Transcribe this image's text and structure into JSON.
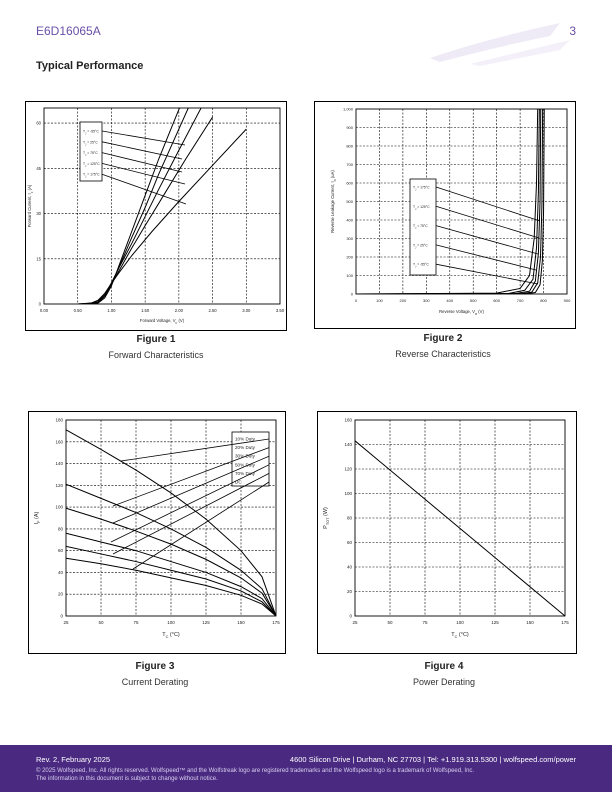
{
  "header": {
    "part_number": "E6D16065A",
    "page_number": "3"
  },
  "section_title": "Typical Performance",
  "figures": [
    {
      "number": "Figure 1",
      "description": "Forward Characteristics"
    },
    {
      "number": "Figure 2",
      "description": "Reverse Characteristics"
    },
    {
      "number": "Figure 3",
      "description": "Current Derating"
    },
    {
      "number": "Figure 4",
      "description": "Power Derating"
    }
  ],
  "footer": {
    "revision": "Rev. 2, February 2025",
    "address": "4600 Silicon Drive | Durham, NC 27703 | Tel: +1.919.313.5300 | wolfspeed.com/power",
    "copyright": "© 2025 Wolfspeed, Inc. All rights reserved. Wolfspeed™ and the Wolfstreak logo are registered trademarks and the Wolfspeed logo is a trademark of Wolfspeed, Inc.",
    "notice": "The information in this document is subject to change without notice."
  },
  "colors": {
    "brand": "#4a2a80",
    "accent": "#6a4fa8"
  },
  "chart_data": [
    {
      "type": "line",
      "xlabel": "Forward Voltage, V_F (V)",
      "ylabel": "Forward Current, I_F (A)",
      "xlim": [
        0,
        3.5
      ],
      "ylim": [
        0,
        65
      ],
      "xticks": [
        "0.00",
        "0.50",
        "1.00",
        "1.50",
        "2.00",
        "2.50",
        "3.00",
        "3.50"
      ],
      "yticks": [
        "0",
        "15",
        "30",
        "45",
        "60"
      ],
      "grid": true,
      "legend_position": "top-left",
      "series": [
        {
          "name": "T_J = -55°C",
          "x": [
            0.6,
            0.8,
            0.9,
            1.0,
            1.1,
            1.3,
            1.5,
            1.7,
            1.9,
            2.1
          ],
          "y": [
            0,
            0.3,
            2,
            6,
            12,
            24,
            36,
            48,
            59,
            70
          ]
        },
        {
          "name": "T_J = 25°C",
          "x": [
            0.6,
            0.8,
            0.9,
            1.0,
            1.1,
            1.3,
            1.5,
            1.7,
            1.9,
            2.2
          ],
          "y": [
            0,
            0.5,
            2.5,
            6.5,
            11.5,
            22,
            32,
            43,
            53,
            68
          ]
        },
        {
          "name": "T_J = 75°C",
          "x": [
            0.6,
            0.8,
            0.9,
            1.0,
            1.1,
            1.3,
            1.5,
            1.7,
            2.0,
            2.4
          ],
          "y": [
            0,
            0.6,
            3,
            7,
            11.5,
            20,
            29,
            38,
            51,
            68
          ]
        },
        {
          "name": "T_J = 125°C",
          "x": [
            0.5,
            0.7,
            0.8,
            0.9,
            1.0,
            1.1,
            1.3,
            1.5,
            1.8,
            2.1,
            2.5
          ],
          "y": [
            0,
            0.3,
            1,
            3,
            6.5,
            10.5,
            18.5,
            26,
            37,
            48,
            62
          ]
        },
        {
          "name": "T_J = 175°C",
          "x": [
            0.5,
            0.7,
            0.8,
            0.9,
            1.0,
            1.1,
            1.3,
            1.6,
            2.0,
            2.5,
            3.0
          ],
          "y": [
            0,
            0.3,
            1.2,
            3.5,
            6.8,
            10,
            16,
            24,
            34,
            46,
            58
          ]
        }
      ]
    },
    {
      "type": "line",
      "xlabel": "Reverse Voltage, V_R (V)",
      "ylabel": "Reverse Leakage Current, I_R (uA)",
      "xlim": [
        0,
        900
      ],
      "ylim": [
        0,
        1000
      ],
      "xticks": [
        "0",
        "100",
        "200",
        "300",
        "400",
        "500",
        "600",
        "700",
        "800",
        "900"
      ],
      "yticks": [
        "0",
        "100",
        "200",
        "300",
        "400",
        "500",
        "600",
        "700",
        "800",
        "900",
        "1,000"
      ],
      "grid": true,
      "legend_position": "left",
      "series": [
        {
          "name": "T_J = 175°C",
          "x": [
            0,
            600,
            700,
            740,
            760,
            770,
            775
          ],
          "y": [
            0,
            5,
            30,
            100,
            300,
            600,
            1000
          ]
        },
        {
          "name": "T_J = 125°C",
          "x": [
            0,
            650,
            720,
            755,
            770,
            778,
            782
          ],
          "y": [
            0,
            3,
            20,
            80,
            250,
            550,
            1000
          ]
        },
        {
          "name": "T_J = 75°C",
          "x": [
            0,
            680,
            740,
            765,
            778,
            785,
            788
          ],
          "y": [
            0,
            2,
            15,
            70,
            220,
            500,
            1000
          ]
        },
        {
          "name": "T_J = 25°C",
          "x": [
            0,
            700,
            750,
            775,
            787,
            793,
            796
          ],
          "y": [
            0,
            1,
            10,
            60,
            200,
            480,
            1000
          ]
        },
        {
          "name": "T_J = -55°C",
          "x": [
            0,
            720,
            765,
            785,
            795,
            800,
            803
          ],
          "y": [
            0,
            1,
            8,
            50,
            180,
            450,
            1000
          ]
        }
      ]
    },
    {
      "type": "line",
      "xlabel": "T_C (°C)",
      "ylabel": "I_F (A)",
      "xlim": [
        25,
        175
      ],
      "ylim": [
        0,
        180
      ],
      "xticks": [
        "25",
        "50",
        "75",
        "100",
        "125",
        "150",
        "175"
      ],
      "yticks": [
        "0",
        "20",
        "40",
        "60",
        "80",
        "100",
        "120",
        "140",
        "160",
        "180"
      ],
      "grid": true,
      "legend_position": "top-right",
      "series": [
        {
          "name": "10% Duty",
          "x": [
            25,
            50,
            75,
            100,
            125,
            150,
            165,
            175
          ],
          "y": [
            171,
            153,
            134,
            113,
            89,
            60,
            36,
            0
          ]
        },
        {
          "name": "20% Duty",
          "x": [
            25,
            50,
            75,
            100,
            125,
            150,
            165,
            175
          ],
          "y": [
            121,
            108,
            95,
            80,
            63,
            42,
            25,
            0
          ]
        },
        {
          "name": "30% Duty",
          "x": [
            25,
            50,
            75,
            100,
            125,
            150,
            165,
            175
          ],
          "y": [
            99,
            89,
            78,
            66,
            52,
            35,
            21,
            0
          ]
        },
        {
          "name": "50% Duty",
          "x": [
            25,
            50,
            75,
            100,
            125,
            150,
            165,
            175
          ],
          "y": [
            76,
            68,
            60,
            50,
            40,
            27,
            16,
            0
          ]
        },
        {
          "name": "70% Duty",
          "x": [
            25,
            50,
            75,
            100,
            125,
            150,
            165,
            175
          ],
          "y": [
            64,
            57,
            50,
            42,
            34,
            23,
            13,
            0
          ]
        },
        {
          "name": "DC",
          "x": [
            25,
            50,
            75,
            100,
            125,
            150,
            165,
            175
          ],
          "y": [
            53,
            48,
            42,
            35,
            28,
            19,
            11,
            0
          ]
        }
      ]
    },
    {
      "type": "line",
      "xlabel": "T_C (°C)",
      "ylabel": "P_TOT (W)",
      "xlim": [
        25,
        175
      ],
      "ylim": [
        0,
        160
      ],
      "xticks": [
        "25",
        "50",
        "75",
        "100",
        "125",
        "150",
        "175"
      ],
      "yticks": [
        "0",
        "20",
        "40",
        "60",
        "80",
        "100",
        "120",
        "140",
        "160"
      ],
      "grid": true,
      "series": [
        {
          "x": [
            25,
            175
          ],
          "y": [
            143,
            0
          ]
        }
      ]
    }
  ]
}
